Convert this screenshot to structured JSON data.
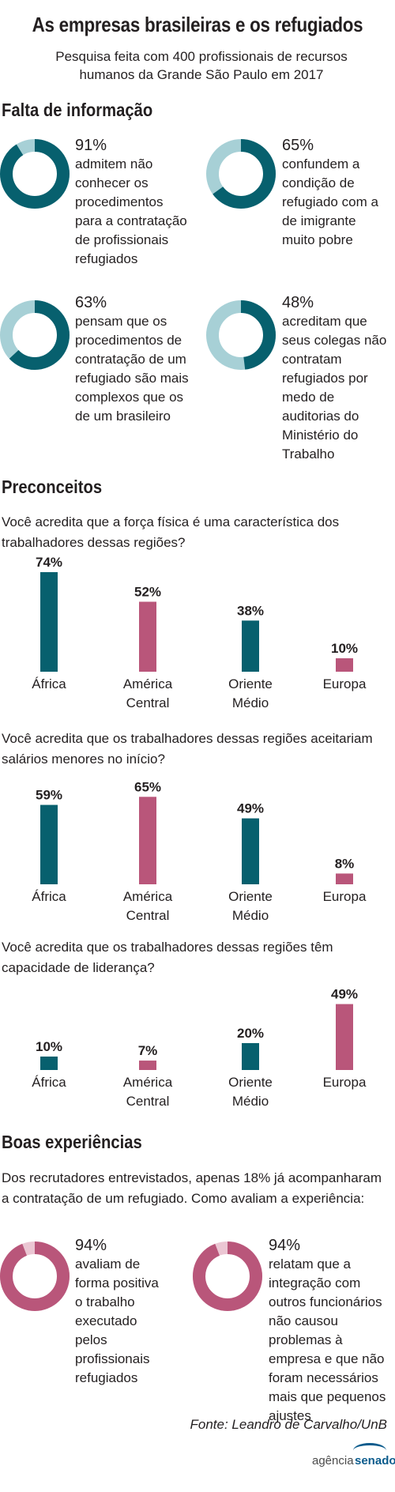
{
  "title": "As empresas brasileiras e os refugiados",
  "subtitle": "Pesquisa feita com 400 profissionais de recursos humanos da Grande São Paulo em 2017",
  "colors": {
    "teal": "#07606e",
    "light_teal": "#a7d0d6",
    "pink": "#b9567a",
    "light_pink": "#ebc6d3",
    "text": "#231f20"
  },
  "sections": {
    "falta": "Falta de informação",
    "preconceitos": "Preconceitos",
    "boas": "Boas experiências"
  },
  "falta_items": [
    {
      "pct": "91%",
      "value": 91,
      "text": "admitem não conhecer os procedimentos para a contratação de profissionais refugiados"
    },
    {
      "pct": "65%",
      "value": 65,
      "text": "confundem a condição de refugiado com a de imigrante muito pobre"
    },
    {
      "pct": "63%",
      "value": 63,
      "text": "pensam que os procedimentos de contratação de um refugiado são mais complexos que os de um brasileiro"
    },
    {
      "pct": "48%",
      "value": 48,
      "text": "acreditam que seus colegas não contratam refugiados por medo de auditorias do Ministério do Trabalho"
    }
  ],
  "boas_intro": "Dos recrutadores entrevistados, apenas 18% já acompanharam a contratação de um refugiado. Como avaliam a experiência:",
  "boas_items": [
    {
      "pct": "94%",
      "value": 94,
      "text": "avaliam de forma positiva o trabalho executado pelos profissionais refugiados"
    },
    {
      "pct": "94%",
      "value": 94,
      "text": "relatam que a integração com outros funcionários não causou problemas à empresa e que não foram necessários mais que pequenos ajustes"
    }
  ],
  "chart_data": [
    {
      "type": "bar",
      "title": "Você acredita que a força física é uma característica dos trabalhadores dessas regiões?",
      "categories": [
        "África",
        "América Central",
        "Oriente Médio",
        "Europa"
      ],
      "values": [
        74,
        52,
        38,
        10
      ],
      "labels": [
        "74%",
        "52%",
        "38%",
        "10%"
      ],
      "ylim": [
        0,
        74
      ],
      "grid": false
    },
    {
      "type": "bar",
      "title": "Você acredita que os trabalhadores dessas regiões aceitariam salários menores no início?",
      "categories": [
        "África",
        "América Central",
        "Oriente Médio",
        "Europa"
      ],
      "values": [
        59,
        65,
        49,
        8
      ],
      "labels": [
        "59%",
        "65%",
        "49%",
        "8%"
      ],
      "ylim": [
        0,
        74
      ],
      "grid": false
    },
    {
      "type": "bar",
      "title": "Você acredita que os trabalhadores dessas regiões têm capacidade de liderança?",
      "categories": [
        "África",
        "América Central",
        "Oriente Médio",
        "Europa"
      ],
      "values": [
        10,
        7,
        20,
        49
      ],
      "labels": [
        "10%",
        "7%",
        "20%",
        "49%"
      ],
      "ylim": [
        0,
        74
      ],
      "grid": false
    }
  ],
  "bar_colors": [
    "teal",
    "pink",
    "teal",
    "pink"
  ],
  "cat_lines": [
    [
      "África"
    ],
    [
      "América",
      "Central"
    ],
    [
      "Oriente",
      "Médio"
    ],
    [
      "Europa"
    ]
  ],
  "source": "Fonte: Leandro de Carvalho/UnB",
  "logo": {
    "part1": "agência",
    "part2": "senado"
  }
}
